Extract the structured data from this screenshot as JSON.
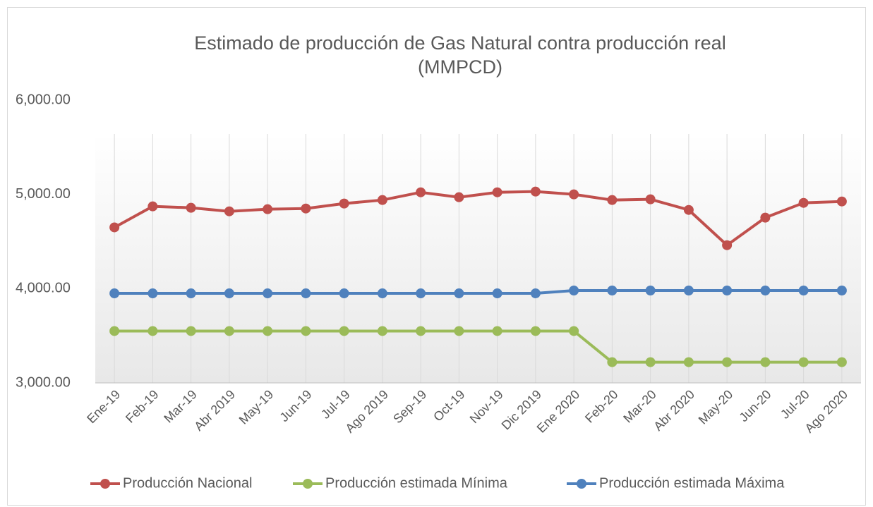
{
  "chart_data": {
    "type": "line",
    "title": "Estimado de producción de Gas Natural contra producción real (MMPCD)",
    "categories": [
      "Ene-19",
      "Feb-19",
      "Mar-19",
      "Abr 2019",
      "May-19",
      "Jun-19",
      "Jul-19",
      "Ago 2019",
      "Sep-19",
      "Oct-19",
      "Nov-19",
      "Dic 2019",
      "Ene 2020",
      "Feb-20",
      "Mar-20",
      "Abr 2020",
      "May-20",
      "Jun-20",
      "Jul-20",
      "Ago 2020"
    ],
    "series": [
      {
        "name": "Producción Nacional",
        "color": "#c0504d",
        "values": [
          4650,
          4873,
          4858,
          4820,
          4843,
          4850,
          4903,
          4940,
          5022,
          4970,
          5022,
          5030,
          5000,
          4940,
          4948,
          4835,
          4461,
          4753,
          4910,
          4925
        ]
      },
      {
        "name": "Producción estimada Mínima",
        "color": "#9bbb59",
        "values": [
          3550,
          3550,
          3550,
          3550,
          3550,
          3550,
          3550,
          3550,
          3550,
          3550,
          3550,
          3550,
          3550,
          3220,
          3220,
          3220,
          3220,
          3220,
          3220,
          3220
        ]
      },
      {
        "name": "Producción estimada Máxima",
        "color": "#4f81bd",
        "values": [
          3950,
          3950,
          3950,
          3950,
          3950,
          3950,
          3950,
          3950,
          3950,
          3950,
          3950,
          3950,
          3980,
          3980,
          3980,
          3980,
          3980,
          3980,
          3980,
          3980
        ]
      }
    ],
    "ylim": [
      3000,
      6000
    ],
    "yticks": [
      {
        "value": 3000,
        "label": "3,000.00"
      },
      {
        "value": 4000,
        "label": "4,000.00"
      },
      {
        "value": 5000,
        "label": "5,000.00"
      },
      {
        "value": 6000,
        "label": "6,000.00"
      }
    ],
    "grid": "x",
    "legend": "bottom"
  }
}
